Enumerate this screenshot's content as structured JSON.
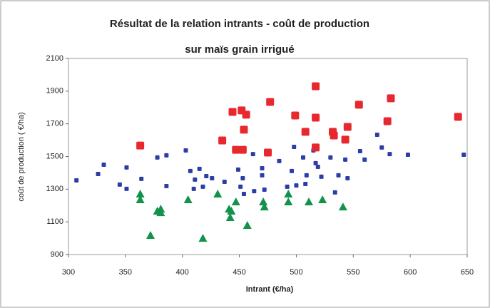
{
  "chart_data": {
    "type": "scatter",
    "title": [
      "Résultat de la relation intrants - coût de production",
      "sur maïs grain irrigué"
    ],
    "x_label": "Intrant (€/ha)",
    "y_label": "coût de production ( €/ha)",
    "xlim": [
      300,
      650
    ],
    "xticks": [
      300,
      350,
      400,
      450,
      500,
      550,
      600,
      650
    ],
    "ylim": [
      900,
      2100
    ],
    "yticks": [
      900,
      1100,
      1300,
      1500,
      1700,
      1900,
      2100
    ],
    "series": [
      {
        "color": "#2b3ea8",
        "marker": "square",
        "x": [
          307,
          326,
          331,
          345,
          351,
          351,
          364,
          378,
          386,
          386,
          403,
          407,
          411,
          415,
          418,
          421,
          426,
          410,
          437,
          449,
          453,
          451,
          454,
          462,
          470,
          470,
          472,
          485,
          492,
          496,
          498,
          500,
          506,
          509,
          515,
          517,
          522,
          530,
          534,
          537,
          543,
          545,
          556,
          560,
          571,
          575,
          582,
          598,
          647,
          463,
          519,
          508
        ],
        "values": [
          1354,
          1393,
          1450,
          1328,
          1433,
          1302,
          1363,
          1494,
          1507,
          1319,
          1537,
          1411,
          1359,
          1424,
          1315,
          1380,
          1367,
          1302,
          1345,
          1420,
          1367,
          1315,
          1271,
          1515,
          1385,
          1428,
          1297,
          1472,
          1315,
          1411,
          1559,
          1323,
          1494,
          1385,
          1537,
          1459,
          1376,
          1494,
          1280,
          1385,
          1481,
          1367,
          1533,
          1481,
          1633,
          1555,
          1515,
          1511,
          1511,
          1288,
          1437,
          1332
        ]
      },
      {
        "color": "#e8282f",
        "marker": "big-square",
        "x": [
          363,
          435,
          444,
          452,
          456,
          454,
          447,
          453,
          475,
          477,
          499,
          508,
          517,
          517,
          517,
          532,
          533,
          545,
          543,
          555,
          580,
          583,
          642
        ],
        "values": [
          1567,
          1598,
          1773,
          1782,
          1756,
          1664,
          1541,
          1541,
          1524,
          1834,
          1751,
          1651,
          1930,
          1738,
          1555,
          1651,
          1629,
          1681,
          1603,
          1817,
          1716,
          1856,
          1743
        ]
      },
      {
        "color": "#12924a",
        "marker": "triangle",
        "x": [
          363,
          363,
          372,
          378,
          381,
          381,
          405,
          418,
          431,
          441,
          442,
          443,
          447,
          457,
          471,
          472,
          493,
          493,
          511,
          523,
          541
        ],
        "values": [
          1271,
          1236,
          1018,
          1166,
          1179,
          1157,
          1236,
          1000,
          1271,
          1179,
          1127,
          1166,
          1223,
          1079,
          1223,
          1192,
          1271,
          1223,
          1223,
          1236,
          1192
        ]
      }
    ]
  }
}
